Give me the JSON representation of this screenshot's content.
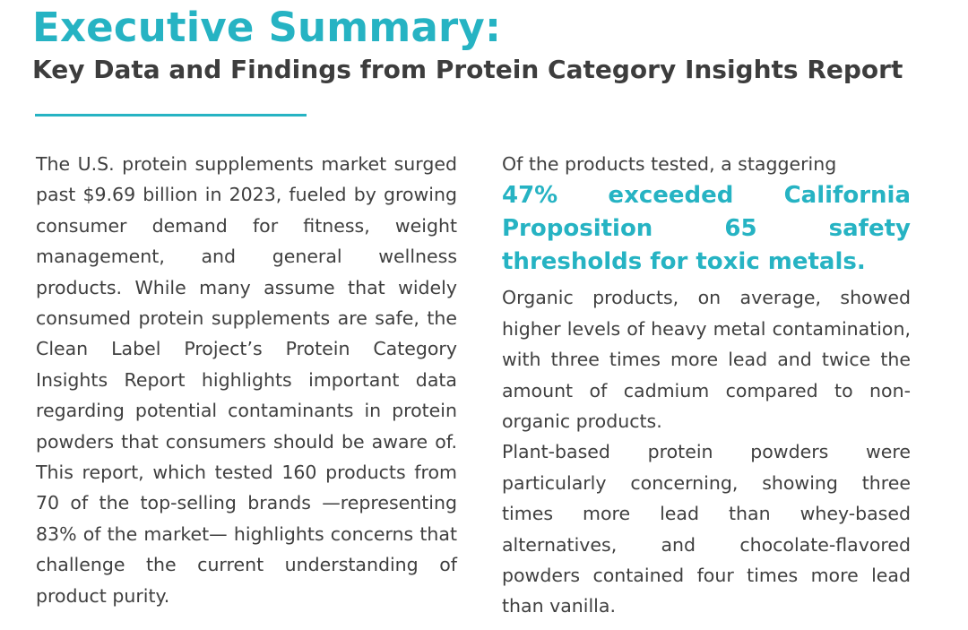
{
  "header": {
    "title": "Executive Summary:",
    "subtitle": "Key Data and Findings from Protein Category Insights Report"
  },
  "colors": {
    "accent": "#26b3c3",
    "heading_dark": "#3d3d3d",
    "body_text": "#3f3f3f"
  },
  "left_column": {
    "paragraph": "The U.S. protein supplements market surged past $9.69 billion in 2023, fueled by growing consumer demand for fitness, weight management, and general wellness products. While many assume that widely consumed protein supplements are safe, the Clean Label Project’s Protein Category Insights Report highlights important data regarding potential contaminants in protein powders that consumers should be aware of. This report, which tested 160 products from 70 of the top-selling brands —representing 83% of the market— highlights concerns that challenge the current understanding of product purity."
  },
  "right_column": {
    "intro": "Of the products tested, a staggering",
    "highlight": "47% exceeded California Proposition 65 safety thresholds for toxic metals.",
    "organic": "Organic products, on average, showed higher levels of heavy metal contamination, with three times more lead and twice the amount of cadmium compared to non-organic products.",
    "plant_based": "Plant-based protein powders were particularly concerning, showing three times more lead than whey-based alternatives, and chocolate-flavored powders contained four times more lead than vanilla."
  }
}
